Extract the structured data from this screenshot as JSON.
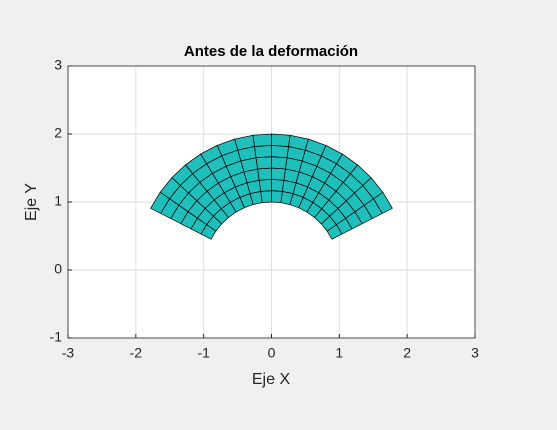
{
  "chart_data": {
    "type": "mesh",
    "title": "Antes de la deformación",
    "x_label": "Eje X",
    "y_label": "Eje Y",
    "xlim": [
      -3,
      3
    ],
    "ylim": [
      -1,
      3
    ],
    "xticks": [
      -3,
      -2,
      -1,
      0,
      1,
      2,
      3
    ],
    "yticks": [
      -1,
      0,
      1,
      2,
      3
    ],
    "grid": true,
    "color": "#1fbfbc",
    "edge_color": "#000000",
    "r": [
      1,
      1.167,
      1.333,
      1.5,
      1.667,
      1.833,
      2
    ],
    "theta_deg": [
      27,
      34.875,
      42.75,
      50.625,
      58.5,
      66.375,
      74.25,
      82.125,
      90,
      97.875,
      105.75,
      113.625,
      121.5,
      129.375,
      137.25,
      145.125,
      153
    ]
  }
}
